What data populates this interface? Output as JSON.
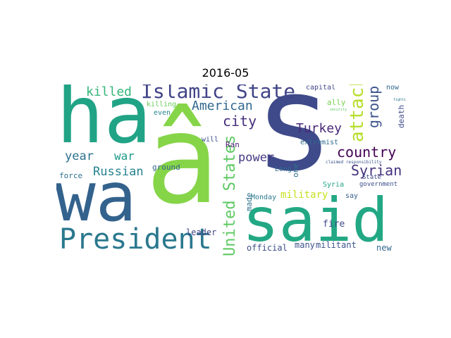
{
  "title": "2016-05",
  "colors": {
    "background": "#ffffff"
  },
  "words": {
    "s": {
      "text": "s",
      "color": "#3f4a8a"
    },
    "ha": {
      "text": "ha",
      "color": "#21a386"
    },
    "wa": {
      "text": "wa",
      "color": "#33628d"
    },
    "a_hat": {
      "text": "â",
      "color": "#86d549"
    },
    "said": {
      "text": "said",
      "color": "#22a884"
    },
    "president": {
      "text": "President",
      "color": "#2a788e"
    },
    "islamic_state": {
      "text": "Islamic State",
      "color": "#414487"
    },
    "united_states": {
      "text": "United States",
      "color": "#5ec962"
    },
    "attack": {
      "text": "attack",
      "color": "#b5de2b"
    },
    "group": {
      "text": "group",
      "color": "#3b528b"
    },
    "country": {
      "text": "country",
      "color": "#440154"
    },
    "syrian": {
      "text": "Syrian",
      "color": "#46337e"
    },
    "turkey": {
      "text": "Turkey",
      "color": "#482878"
    },
    "city": {
      "text": "city",
      "color": "#472f7d"
    },
    "american": {
      "text": "American",
      "color": "#31688e"
    },
    "killed": {
      "text": "killed",
      "color": "#35b779"
    },
    "russian": {
      "text": "Russian",
      "color": "#26828e"
    },
    "year": {
      "text": "year",
      "color": "#2c728e"
    },
    "war": {
      "text": "war",
      "color": "#1f998a"
    },
    "power": {
      "text": "power",
      "color": "#443983"
    },
    "military": {
      "text": "military",
      "color": "#c8e020"
    },
    "fire": {
      "text": "fire",
      "color": "#3e4989"
    },
    "many": {
      "text": "many",
      "color": "#3b528b"
    },
    "militant": {
      "text": "militant",
      "color": "#3a548c"
    },
    "official": {
      "text": "official",
      "color": "#3d4e8a"
    },
    "new": {
      "text": "new",
      "color": "#31688e"
    },
    "leader": {
      "text": "leader",
      "color": "#414487"
    },
    "ground": {
      "text": "ground",
      "color": "#33638d"
    },
    "force": {
      "text": "force",
      "color": "#2d708e"
    },
    "killing": {
      "text": "killing",
      "color": "#6ccd5a"
    },
    "even": {
      "text": "even",
      "color": "#25848e"
    },
    "will": {
      "text": "will",
      "color": "#3b528b"
    },
    "ran": {
      "text": "Ran",
      "color": "#481f70"
    },
    "long": {
      "text": "Long",
      "color": "#2e6e8e"
    },
    "one": {
      "text": "one",
      "color": "#2c728e"
    },
    "capital": {
      "text": "capital",
      "color": "#3f4788"
    },
    "ally": {
      "text": "ally",
      "color": "#7ad151"
    },
    "extremist": {
      "text": "extremist",
      "color": "#2f6c8e"
    },
    "syria": {
      "text": "Syria",
      "color": "#20a386"
    },
    "state": {
      "text": "State",
      "color": "#3d4d8a"
    },
    "government": {
      "text": "government",
      "color": "#3c4f8a"
    },
    "say": {
      "text": "say",
      "color": "#355f8d"
    },
    "monday": {
      "text": "Monday",
      "color": "#2a788e"
    },
    "made": {
      "text": "made",
      "color": "#2d708e"
    },
    "now": {
      "text": "now",
      "color": "#31688e"
    },
    "death": {
      "text": "death",
      "color": "#3e4a89"
    },
    "claimed_responsibility": {
      "text": "claimed responsibility",
      "color": "#3b528b"
    },
    "security": {
      "text": "security",
      "color": "#5ec962"
    },
    "fighting": {
      "text": "fighting",
      "color": "#2a788e"
    }
  }
}
